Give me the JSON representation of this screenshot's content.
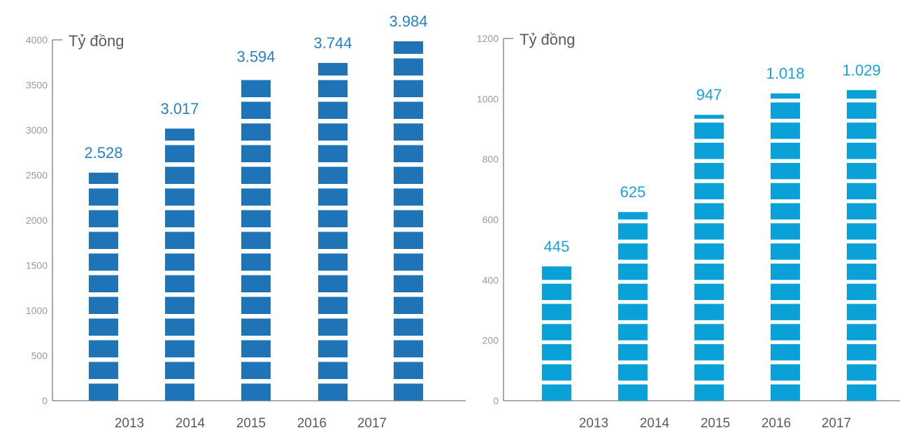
{
  "chart_data": [
    {
      "type": "bar",
      "ylabel": "Tỷ đồng",
      "categories": [
        "2013",
        "2014",
        "2015",
        "2016",
        "2017"
      ],
      "values": [
        2528,
        3017,
        3594,
        3744,
        3984
      ],
      "value_labels": [
        "2.528",
        "3.017",
        "3.594",
        "3.744",
        "3.984"
      ],
      "y_ticks": [
        0,
        500,
        1000,
        1500,
        2000,
        2500,
        3000,
        3500,
        4000
      ],
      "ylim": [
        0,
        4000
      ],
      "grid": false,
      "colors": {
        "bar": "#1f73b7",
        "label": "#2a7fc0"
      }
    },
    {
      "type": "bar",
      "ylabel": "Tỷ đồng",
      "categories": [
        "2013",
        "2014",
        "2015",
        "2016",
        "2017"
      ],
      "values": [
        445,
        625,
        947,
        1018,
        1029
      ],
      "value_labels": [
        "445",
        "625",
        "947",
        "1.018",
        "1.029"
      ],
      "y_ticks": [
        0,
        200,
        400,
        600,
        800,
        1000,
        1200
      ],
      "ylim": [
        0,
        1200
      ],
      "grid": false,
      "colors": {
        "bar": "#0aa0d8",
        "label": "#1aa3d6"
      }
    }
  ]
}
